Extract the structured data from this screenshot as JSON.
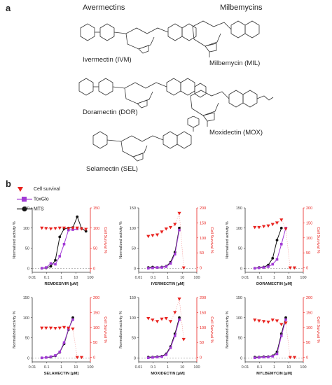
{
  "panel_a": {
    "letter": "a",
    "left_title": "Avermectins",
    "right_title": "Milbemycins",
    "compounds": [
      {
        "id": "ivm",
        "label": "Ivermectin (IVM)"
      },
      {
        "id": "dor",
        "label": "Doramectin (DOR)"
      },
      {
        "id": "sel",
        "label": "Selamectin (SEL)"
      },
      {
        "id": "mil",
        "label": "Milbemycin (MIL)"
      },
      {
        "id": "mox",
        "label": "Moxidectin (MOX)"
      }
    ]
  },
  "panel_b": {
    "letter": "b",
    "legend": [
      {
        "label": "Cell survival",
        "color": "#e8211d",
        "marker": "triangle-down"
      },
      {
        "label": "ToxGlo",
        "color": "#a23bd6",
        "marker": "square"
      },
      {
        "label": "MTS",
        "color": "#111111",
        "marker": "circle"
      }
    ],
    "left_axis_label": "Normalized activity %",
    "right_axis_label": "Cell Survival %",
    "x_unit_suffix": " [µM]",
    "x_ticks": [
      "0.01",
      "0.1",
      "1",
      "10",
      "100"
    ],
    "left_ticks": [
      "0",
      "50",
      "100",
      "150"
    ],
    "right_ticks_a": [
      "0",
      "50",
      "100",
      "150"
    ],
    "right_ticks_b": [
      "0",
      "50",
      "100",
      "150",
      "200"
    ]
  },
  "chart_data": [
    {
      "type": "scatter",
      "xlabel": "REMDESIVIR [µM]",
      "xscale": "log",
      "xlim": [
        0.01,
        100
      ],
      "ylabel": "Normalized activity %",
      "ylim": [
        -10,
        150
      ],
      "y2label": "Cell Survival %",
      "y2lim": [
        -10,
        150
      ],
      "series": [
        {
          "name": "MTS",
          "axis": "left",
          "x": [
            0.046,
            0.091,
            0.19,
            0.39,
            0.78,
            1.56,
            3.12,
            6.25,
            12.5,
            25,
            50
          ],
          "y": [
            0,
            1,
            5,
            20,
            78,
            98,
            100,
            101,
            128,
            99,
            92
          ]
        },
        {
          "name": "ToxGlo",
          "axis": "left",
          "x": [
            0.046,
            0.091,
            0.19,
            0.39,
            0.78,
            1.56,
            3.12,
            6.25,
            12.5
          ],
          "y": [
            0,
            2,
            12,
            10,
            30,
            60,
            95,
            96,
            98
          ]
        },
        {
          "name": "Cell survival",
          "axis": "right",
          "x": [
            0.046,
            0.091,
            0.19,
            0.39,
            0.78,
            1.56,
            3.12,
            6.25,
            12.5,
            25,
            50
          ],
          "y": [
            100,
            99,
            98,
            99,
            100,
            100,
            99,
            100,
            100,
            98,
            97
          ]
        }
      ]
    },
    {
      "type": "scatter",
      "xlabel": "IVERMECTIN [µM]",
      "xscale": "log",
      "xlim": [
        0.01,
        100
      ],
      "ylabel": "Normalized activity %",
      "ylim": [
        -10,
        150
      ],
      "y2label": "Cell Survival %",
      "y2lim": [
        -15,
        200
      ],
      "series": [
        {
          "name": "MTS",
          "axis": "left",
          "x": [
            0.046,
            0.091,
            0.19,
            0.39,
            0.78,
            1.56,
            3.12,
            6.25
          ],
          "y": [
            2,
            3,
            2,
            3,
            5,
            15,
            40,
            100
          ]
        },
        {
          "name": "ToxGlo",
          "axis": "left",
          "x": [
            0.046,
            0.091,
            0.19,
            0.39,
            0.78,
            1.56,
            3.12,
            6.25
          ],
          "y": [
            0,
            1,
            2,
            2,
            4,
            12,
            35,
            95
          ]
        },
        {
          "name": "Cell survival",
          "axis": "right",
          "x": [
            0.046,
            0.091,
            0.19,
            0.39,
            0.78,
            1.56,
            3.12,
            6.25,
            12.5
          ],
          "y": [
            105,
            108,
            110,
            120,
            130,
            135,
            145,
            182,
            0
          ]
        }
      ]
    },
    {
      "type": "scatter",
      "xlabel": "DORAMECTIN [µM]",
      "xscale": "log",
      "xlim": [
        0.01,
        100
      ],
      "ylabel": "Normalized activity %",
      "ylim": [
        -10,
        150
      ],
      "y2label": "Cell Survival %",
      "y2lim": [
        -15,
        200
      ],
      "series": [
        {
          "name": "MTS",
          "axis": "left",
          "x": [
            0.046,
            0.091,
            0.19,
            0.39,
            0.78,
            1.56,
            3.12
          ],
          "y": [
            0,
            2,
            3,
            8,
            25,
            70,
            100
          ]
        },
        {
          "name": "ToxGlo",
          "axis": "left",
          "x": [
            0.046,
            0.091,
            0.19,
            0.39,
            0.78,
            1.56,
            3.12,
            6.25
          ],
          "y": [
            0,
            1,
            2,
            4,
            10,
            22,
            60,
            100
          ]
        },
        {
          "name": "Cell survival",
          "axis": "right",
          "x": [
            0.046,
            0.091,
            0.19,
            0.39,
            0.78,
            1.56,
            3.12,
            6.25,
            12.5,
            25
          ],
          "y": [
            135,
            135,
            138,
            140,
            145,
            150,
            160,
            130,
            0,
            0
          ]
        }
      ]
    },
    {
      "type": "scatter",
      "xlabel": "SELAMECTIN [µM]",
      "xscale": "log",
      "xlim": [
        0.01,
        100
      ],
      "ylabel": "Normalized activity %",
      "ylim": [
        -10,
        150
      ],
      "y2label": "Cell Survival %",
      "y2lim": [
        -15,
        200
      ],
      "series": [
        {
          "name": "MTS",
          "axis": "left",
          "x": [
            0.046,
            0.091,
            0.19,
            0.39,
            0.78,
            1.56,
            3.12,
            6.25
          ],
          "y": [
            0,
            1,
            2,
            5,
            14,
            35,
            70,
            100
          ]
        },
        {
          "name": "ToxGlo",
          "axis": "left",
          "x": [
            0.046,
            0.091,
            0.19,
            0.39,
            0.78,
            1.56,
            3.12,
            6.25
          ],
          "y": [
            0,
            1,
            3,
            6,
            15,
            38,
            72,
            95
          ]
        },
        {
          "name": "Cell survival",
          "axis": "right",
          "x": [
            0.046,
            0.091,
            0.19,
            0.39,
            0.78,
            1.56,
            3.12,
            6.25,
            12.5,
            25
          ],
          "y": [
            98,
            98,
            98,
            97,
            98,
            100,
            98,
            95,
            0,
            0
          ]
        }
      ]
    },
    {
      "type": "scatter",
      "xlabel": "MOXIDECTIN [µM]",
      "xscale": "log",
      "xlim": [
        0.01,
        100
      ],
      "ylabel": "Normalized activity %",
      "ylim": [
        -10,
        150
      ],
      "y2label": "Cell Survival %",
      "y2lim": [
        -15,
        200
      ],
      "series": [
        {
          "name": "MTS",
          "axis": "left",
          "x": [
            0.046,
            0.091,
            0.19,
            0.39,
            0.78,
            1.56,
            3.12,
            6.25
          ],
          "y": [
            2,
            2,
            3,
            4,
            10,
            28,
            60,
            100
          ]
        },
        {
          "name": "ToxGlo",
          "axis": "left",
          "x": [
            0.046,
            0.091,
            0.19,
            0.39,
            0.78,
            1.56,
            3.12,
            6.25
          ],
          "y": [
            0,
            1,
            2,
            3,
            8,
            25,
            55,
            95
          ]
        },
        {
          "name": "Cell survival",
          "axis": "right",
          "x": [
            0.046,
            0.091,
            0.19,
            0.39,
            0.78,
            1.56,
            3.12,
            6.25,
            12.5
          ],
          "y": [
            130,
            125,
            120,
            128,
            130,
            120,
            150,
            195,
            60
          ]
        }
      ]
    },
    {
      "type": "scatter",
      "xlabel": "MYLBEMYCIN [µM]",
      "xscale": "log",
      "xlim": [
        0.01,
        100
      ],
      "ylabel": "Normalized activity %",
      "ylim": [
        -10,
        150
      ],
      "y2label": "Cell Survival %",
      "y2lim": [
        -15,
        200
      ],
      "series": [
        {
          "name": "MTS",
          "axis": "left",
          "x": [
            0.046,
            0.091,
            0.19,
            0.39,
            0.78,
            1.56,
            3.12,
            6.25
          ],
          "y": [
            2,
            2,
            3,
            3,
            5,
            15,
            60,
            100
          ]
        },
        {
          "name": "ToxGlo",
          "axis": "left",
          "x": [
            0.046,
            0.091,
            0.19,
            0.39,
            0.78,
            1.56,
            3.12,
            6.25
          ],
          "y": [
            0,
            1,
            2,
            2,
            4,
            10,
            55,
            95
          ]
        },
        {
          "name": "Cell survival",
          "axis": "right",
          "x": [
            0.046,
            0.091,
            0.19,
            0.39,
            0.78,
            1.56,
            3.12,
            6.25,
            12.5,
            25
          ],
          "y": [
            125,
            122,
            120,
            118,
            125,
            122,
            110,
            115,
            0,
            0
          ]
        }
      ]
    }
  ]
}
